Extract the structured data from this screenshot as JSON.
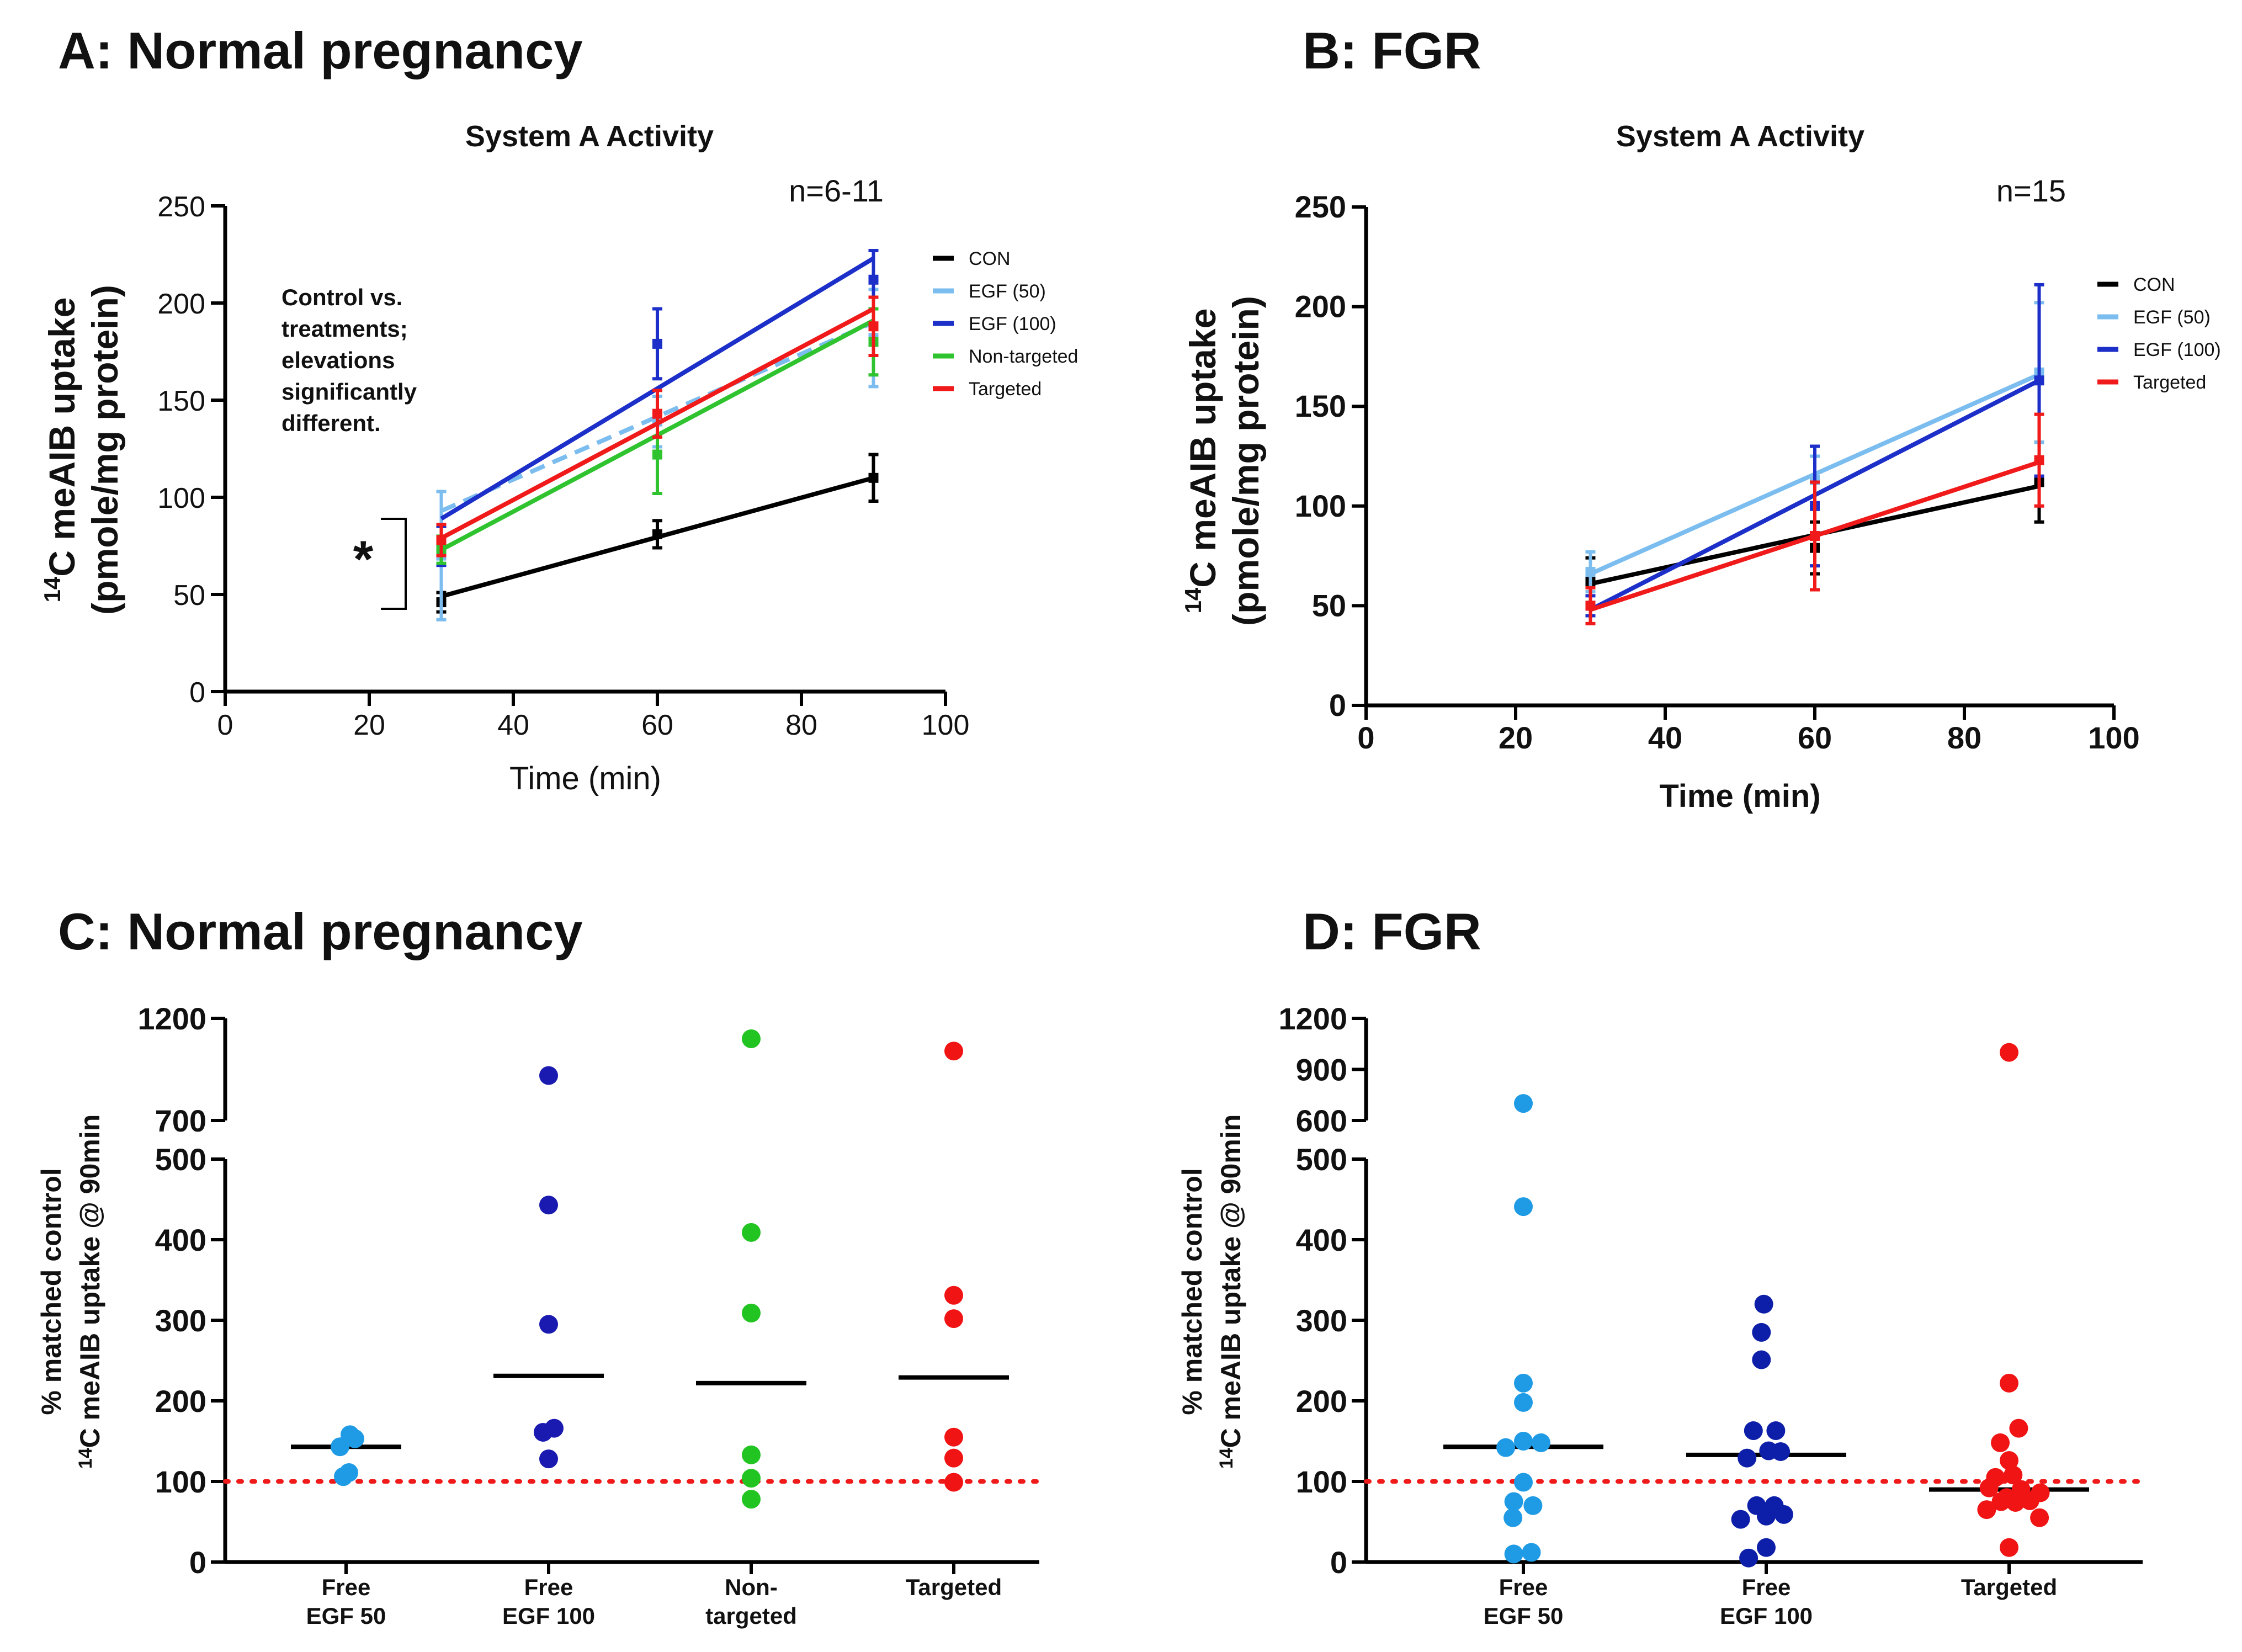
{
  "panels": {
    "a": {
      "label": "A:  Normal pregnancy"
    },
    "b": {
      "label": "B: FGR"
    },
    "c": {
      "label": "C:  Normal pregnancy"
    },
    "d": {
      "label": "D: FGR"
    }
  },
  "colors": {
    "con": "#000000",
    "egf50": "#7cbdf0",
    "egf100": "#1c2fc8",
    "nontargeted": "#2fc42f",
    "targeted": "#f01a1a",
    "c_egf50": "#1f9be6",
    "c_egf100": "#1a1ab0",
    "c_nontargeted": "#22c422",
    "c_targeted": "#f01414",
    "d_egf100": "#0d1fa8"
  },
  "chart_data": [
    {
      "id": "a",
      "type": "line",
      "title": "System A Activity",
      "xlabel": "Time (min)",
      "ylabel_line1": "C meAIB uptake",
      "ylabel_superscript": "14",
      "ylabel_line2": "(pmole/mg protein)",
      "xlim": [
        0,
        100
      ],
      "ylim": [
        0,
        250
      ],
      "xticks": [
        0,
        20,
        40,
        60,
        80,
        100
      ],
      "yticks": [
        0,
        50,
        100,
        150,
        200,
        250
      ],
      "x": [
        30,
        60,
        90
      ],
      "n_label": "n=6-11",
      "annotation": [
        "Control vs.",
        "treatments;",
        "elevations",
        "significantly",
        "different."
      ],
      "significance": "*",
      "series": [
        {
          "name": "CON",
          "color_key": "con",
          "values": [
            46,
            81,
            110
          ],
          "err": [
            5,
            7,
            12
          ],
          "fit": [
            49,
            110
          ]
        },
        {
          "name": "EGF (50)",
          "color_key": "egf50",
          "values": [
            70,
            139,
            182
          ],
          "err": [
            33,
            13,
            25
          ],
          "fit": [
            93,
            190
          ],
          "dashed": true
        },
        {
          "name": "EGF (100)",
          "color_key": "egf100",
          "values": [
            75,
            179,
            212
          ],
          "err": [
            10,
            18,
            15
          ],
          "fit": [
            89,
            223
          ]
        },
        {
          "name": "Non-targeted",
          "color_key": "nontargeted",
          "values": [
            73,
            122,
            180
          ],
          "err": [
            7,
            20,
            17
          ],
          "fit": [
            73,
            191
          ]
        },
        {
          "name": "Targeted",
          "color_key": "targeted",
          "values": [
            78,
            143,
            188
          ],
          "err": [
            8,
            12,
            15
          ],
          "fit": [
            79,
            197
          ]
        }
      ]
    },
    {
      "id": "b",
      "type": "line",
      "title": "System A Activity",
      "xlabel": "Time (min)",
      "ylabel_line1": "C meAIB uptake",
      "ylabel_superscript": "14",
      "ylabel_line2": "(pmole/mg protein)",
      "xlim": [
        0,
        100
      ],
      "ylim": [
        0,
        250
      ],
      "xticks": [
        0,
        20,
        40,
        60,
        80,
        100
      ],
      "yticks": [
        0,
        50,
        100,
        150,
        200,
        250
      ],
      "x": [
        30,
        60,
        90
      ],
      "n_label": "n=15",
      "series": [
        {
          "name": "CON",
          "color_key": "con",
          "values": [
            62,
            79,
            112
          ],
          "err": [
            12,
            13,
            20
          ],
          "fit": [
            61,
            110
          ]
        },
        {
          "name": "EGF (50)",
          "color_key": "egf50",
          "values": [
            67,
            113,
            167
          ],
          "err": [
            10,
            12,
            35
          ],
          "fit": [
            66,
            166
          ]
        },
        {
          "name": "EGF (100)",
          "color_key": "egf100",
          "values": [
            50,
            100,
            163
          ],
          "err": [
            5,
            30,
            48
          ],
          "fit": [
            48,
            163
          ]
        },
        {
          "name": "Targeted",
          "color_key": "targeted",
          "values": [
            50,
            85,
            123
          ],
          "err": [
            9,
            27,
            23
          ],
          "fit": [
            48,
            122
          ]
        }
      ]
    },
    {
      "id": "c",
      "type": "scatter",
      "ylabel_line1": "% matched control",
      "ylabel_line2": "C meAIB uptake @ 90min",
      "ylabel_superscript": "14",
      "categories": [
        "Free EGF 50",
        "Free EGF 100",
        "Non-targeted",
        "Targeted"
      ],
      "category_lines": [
        [
          "Free",
          "EGF 50"
        ],
        [
          "Free",
          "EGF 100"
        ],
        [
          "Non-",
          "targeted"
        ],
        [
          "Targeted"
        ]
      ],
      "lower_ylim": [
        0,
        500
      ],
      "upper_ylim": [
        700,
        1200
      ],
      "lower_yticks": [
        0,
        100,
        200,
        300,
        400,
        500
      ],
      "upper_yticks": [
        700,
        1200
      ],
      "reference_line": 100,
      "groups": [
        {
          "name": "Free EGF 50",
          "color_key": "c_egf50",
          "points": [
            [
              -0.11,
              143
            ],
            [
              0.07,
              158
            ],
            [
              0.16,
              153
            ],
            [
              -0.05,
              106
            ],
            [
              0.05,
              111
            ]
          ],
          "median": 143
        },
        {
          "name": "Free EGF 100",
          "color_key": "c_egf100",
          "points": [
            [
              0,
              920
            ],
            [
              0,
              443
            ],
            [
              0,
              295
            ],
            [
              -0.1,
              161
            ],
            [
              0.1,
              166
            ],
            [
              0,
              128
            ]
          ],
          "median": 231
        },
        {
          "name": "Non-targeted",
          "color_key": "c_nontargeted",
          "points": [
            [
              0,
              1100
            ],
            [
              0,
              409
            ],
            [
              0,
              309
            ],
            [
              0,
              133
            ],
            [
              0,
              104
            ],
            [
              0,
              78
            ]
          ],
          "median": 222
        },
        {
          "name": "Targeted",
          "color_key": "c_targeted",
          "points": [
            [
              0,
              1040
            ],
            [
              0,
              331
            ],
            [
              0,
              302
            ],
            [
              0,
              155
            ],
            [
              0,
              129
            ],
            [
              0,
              99
            ]
          ],
          "median": 229
        }
      ]
    },
    {
      "id": "d",
      "type": "scatter",
      "ylabel_line1": "% matched control",
      "ylabel_line2": "C meAIB uptake @ 90min",
      "ylabel_superscript": "14",
      "categories": [
        "Free EGF 50",
        "Free EGF 100",
        "Targeted"
      ],
      "category_lines": [
        [
          "Free",
          "EGF 50"
        ],
        [
          "Free",
          "EGF 100"
        ],
        [
          "Targeted"
        ]
      ],
      "lower_ylim": [
        0,
        500
      ],
      "upper_ylim": [
        600,
        1200
      ],
      "lower_yticks": [
        0,
        100,
        200,
        300,
        400,
        500
      ],
      "upper_yticks": [
        600,
        900,
        1200
      ],
      "reference_line": 100,
      "groups": [
        {
          "name": "Free EGF 50",
          "color_key": "c_egf50",
          "points": [
            [
              0,
              700
            ],
            [
              0,
              441
            ],
            [
              0,
              222
            ],
            [
              0,
              198
            ],
            [
              -0.22,
              142
            ],
            [
              0,
              150
            ],
            [
              0.22,
              148
            ],
            [
              0,
              99
            ],
            [
              -0.12,
              75
            ],
            [
              0.12,
              70
            ],
            [
              -0.13,
              55
            ],
            [
              -0.12,
              10
            ],
            [
              0.1,
              12
            ]
          ],
          "median": 143
        },
        {
          "name": "Free EGF 100",
          "color_key": "d_egf100",
          "points": [
            [
              -0.03,
              320
            ],
            [
              -0.06,
              285
            ],
            [
              -0.06,
              251
            ],
            [
              -0.16,
              163
            ],
            [
              0.12,
              163
            ],
            [
              -0.24,
              129
            ],
            [
              0.03,
              138
            ],
            [
              0.18,
              137
            ],
            [
              -0.12,
              70
            ],
            [
              0.1,
              70
            ],
            [
              -0.32,
              53
            ],
            [
              0.0,
              57
            ],
            [
              0.22,
              59
            ],
            [
              0.0,
              18
            ],
            [
              -0.22,
              5
            ]
          ],
          "median": 133
        },
        {
          "name": "Targeted",
          "color_key": "c_targeted",
          "points": [
            [
              0,
              1000
            ],
            [
              0,
              222
            ],
            [
              -0.11,
              148
            ],
            [
              0.12,
              166
            ],
            [
              0.0,
              126
            ],
            [
              -0.25,
              92
            ],
            [
              -0.17,
              105
            ],
            [
              0.05,
              108
            ],
            [
              -0.03,
              80
            ],
            [
              0.15,
              90
            ],
            [
              -0.28,
              65
            ],
            [
              -0.1,
              75
            ],
            [
              0.08,
              74
            ],
            [
              0.26,
              76
            ],
            [
              0.39,
              86
            ],
            [
              0.38,
              55
            ],
            [
              0.0,
              18
            ]
          ],
          "median": 90
        }
      ]
    }
  ]
}
